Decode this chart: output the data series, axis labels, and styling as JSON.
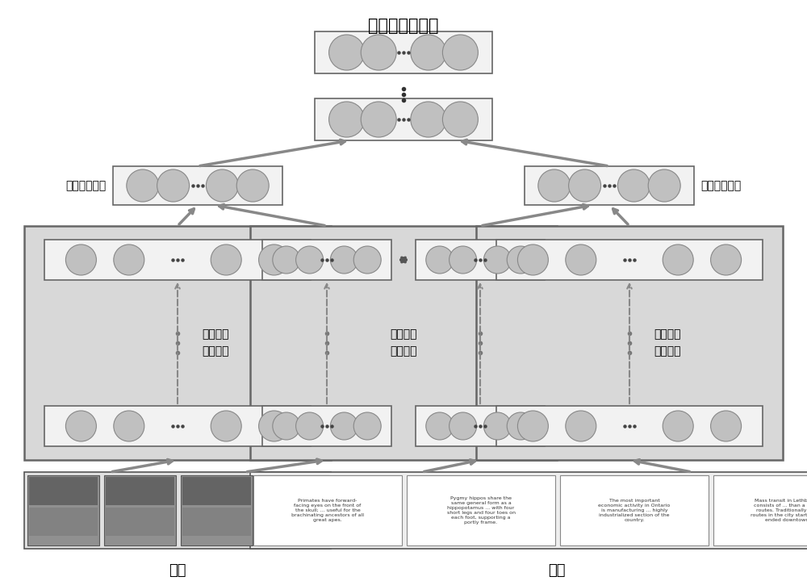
{
  "title_top": "跨媒体统一表示",
  "label_img_mid": "图像中间表示",
  "label_txt_mid": "文本中间表示",
  "label_img_bottom": "图像",
  "label_txt_bottom": "文本",
  "label_media_inner_left": "媒体内部\n关联分析",
  "label_media_cross": "媒体之间\n关联分析",
  "label_media_inner_right": "媒体内部\n关联分析",
  "bg_color": "#ffffff",
  "panel_fill": "#d8d8d8",
  "box_fill": "#f2f2f2",
  "circle_fill": "#c0c0c0",
  "circle_edge": "#888888",
  "arrow_color": "#888888",
  "arrow_color_dark": "#666666",
  "border_color": "#666666",
  "font_size_title": 15,
  "font_size_label": 10,
  "font_size_small": 8,
  "font_size_tiny": 4.5,
  "text_samples": [
    "Primates have forward-\nfacing eyes on the front of\nthe skull; ... useful for the\nbrachinating ancestors of all\ngreat apes.",
    "Pygmy hippos share the\nsame general form as a\nhippopotamus ... with four\nshort legs and four toes on\neach foot, supporting a\nportly frame.",
    "The most important\neconomic activity in Ontario\nis manufacturing ... highly\nindustrialized section of the\ncountry.",
    "Mass transit in Lethbridge\nconsists of ... than a dozen\nroutes. Traditionally, bus\nroutes in the city started and\nended downtown."
  ]
}
